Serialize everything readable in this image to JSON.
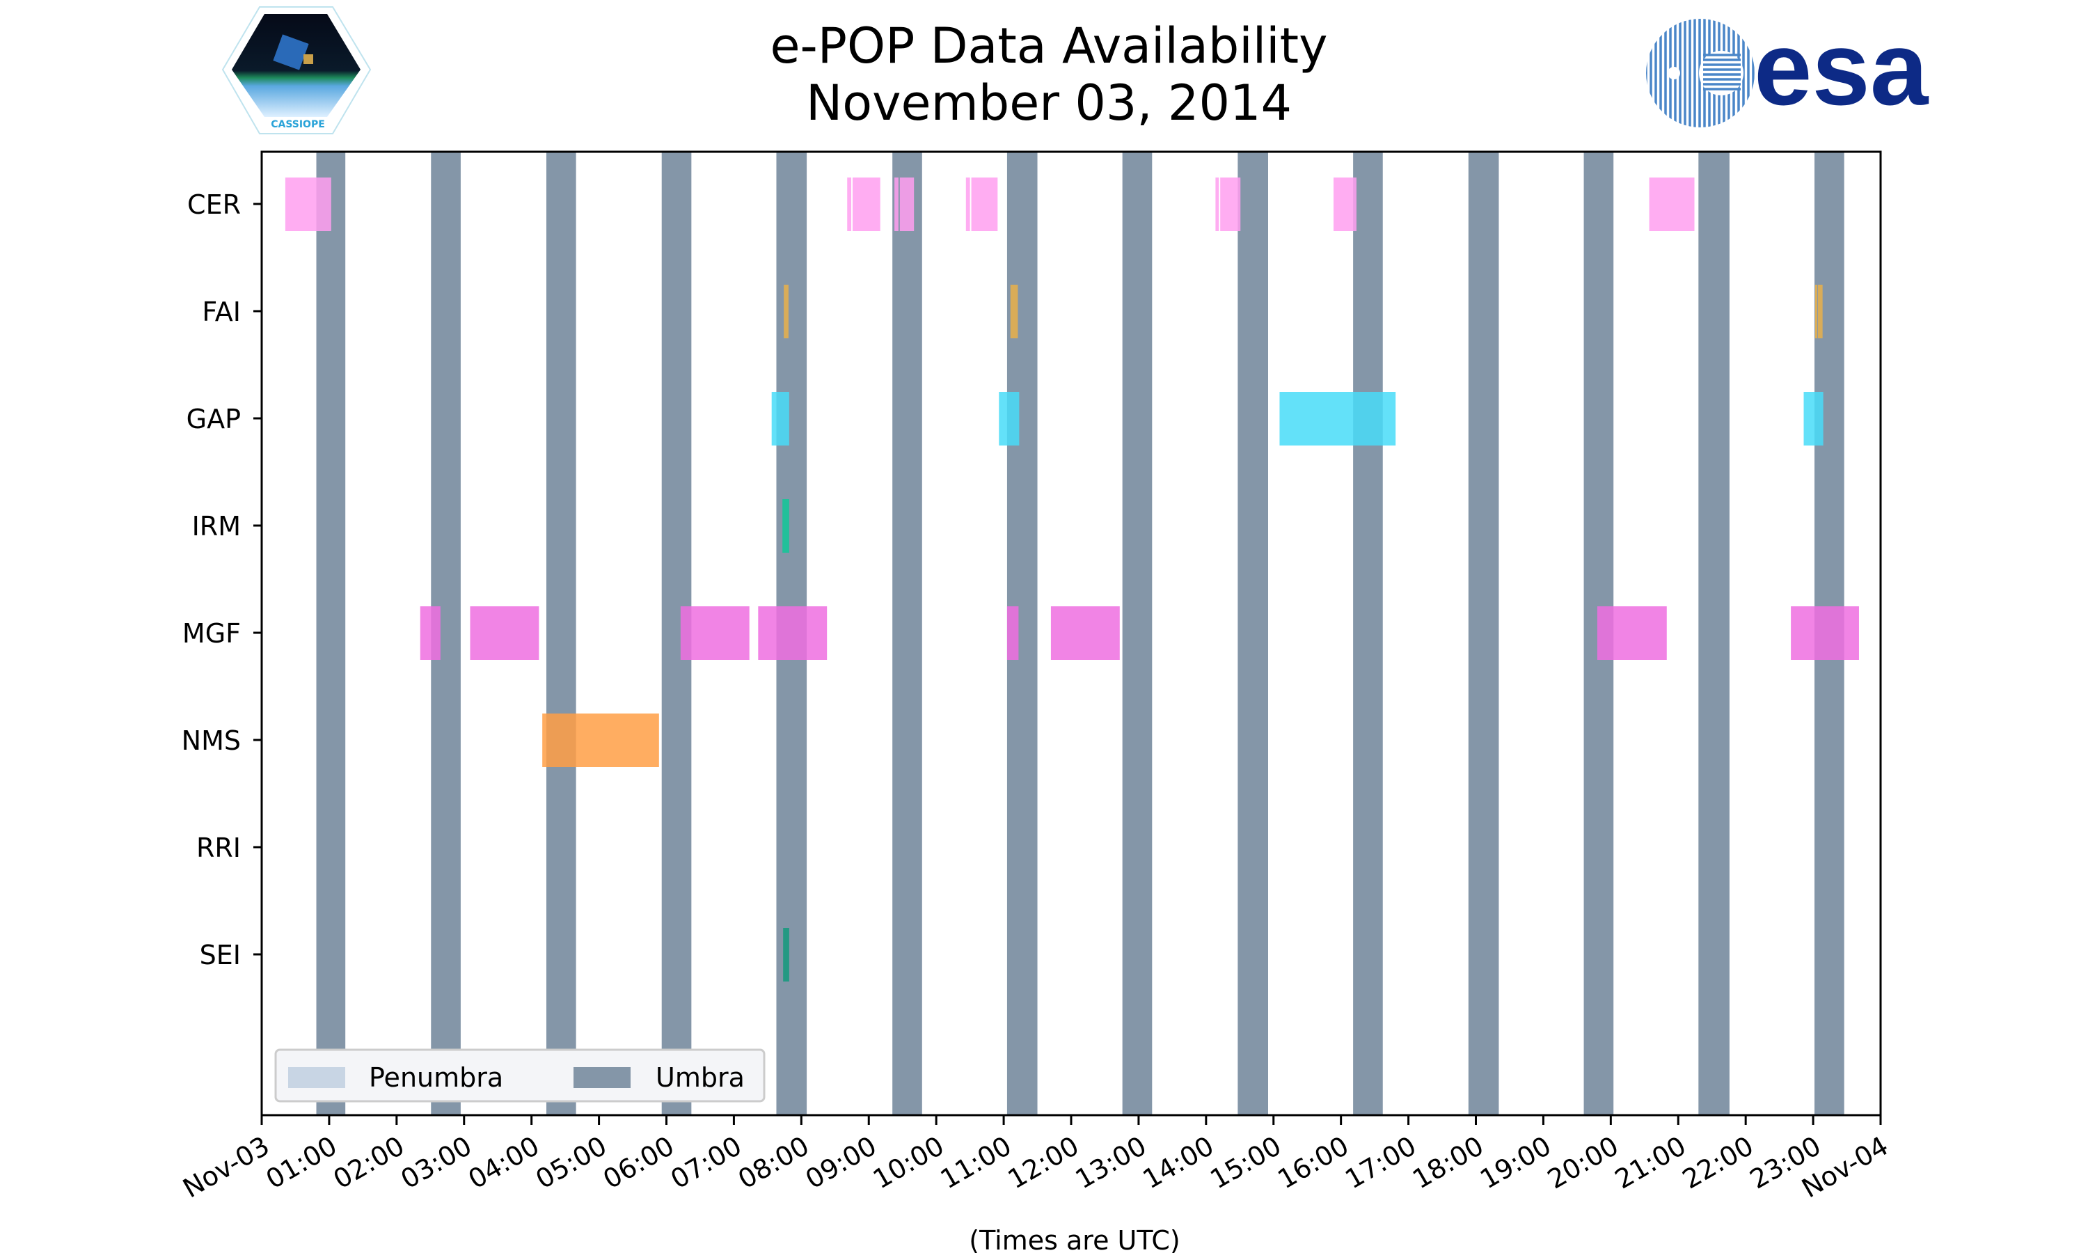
{
  "header": {
    "title_line1": "e-POP Data Availability",
    "title_line2": "November 03, 2014",
    "left_logo_text": "CASSIOPE",
    "right_logo_text": "esa"
  },
  "colors": {
    "umbra": "#8496a8",
    "penumbra": "#c8d5e4",
    "CER": "#ff9ff0",
    "FAI": "#e8b04a",
    "GAP": "#48dcf8",
    "IRM": "#10c898",
    "MGF": "#ef6ee0",
    "NMS": "#ff9f45",
    "RRI": "#888888",
    "SEI": "#139a7c",
    "esa_blue": "#0d2a86"
  },
  "chart_data": {
    "type": "timeline",
    "title": "e-POP Data Availability November 03, 2014",
    "xlabel": "(Times are UTC)",
    "xlim_hours": [
      0,
      24
    ],
    "x_tick_labels": [
      "Nov-03",
      "01:00",
      "02:00",
      "03:00",
      "04:00",
      "05:00",
      "06:00",
      "07:00",
      "08:00",
      "09:00",
      "10:00",
      "11:00",
      "12:00",
      "13:00",
      "14:00",
      "15:00",
      "16:00",
      "17:00",
      "18:00",
      "19:00",
      "20:00",
      "21:00",
      "22:00",
      "23:00",
      "Nov-04"
    ],
    "categories": [
      "CER",
      "FAI",
      "GAP",
      "IRM",
      "MGF",
      "NMS",
      "RRI",
      "SEI"
    ],
    "legend": {
      "placement": "lower-left",
      "entries": [
        "Penumbra",
        "Umbra"
      ]
    },
    "umbra_hours": [
      [
        0.81,
        1.24
      ],
      [
        2.51,
        2.95
      ],
      [
        4.22,
        4.66
      ],
      [
        5.93,
        6.37
      ],
      [
        7.63,
        8.08
      ],
      [
        9.35,
        9.79
      ],
      [
        11.05,
        11.5
      ],
      [
        12.76,
        13.2
      ],
      [
        14.47,
        14.92
      ],
      [
        16.18,
        16.62
      ],
      [
        17.89,
        18.34
      ],
      [
        19.6,
        20.04
      ],
      [
        21.3,
        21.76
      ],
      [
        23.02,
        23.46
      ]
    ],
    "penumbra_hours": [],
    "series": [
      {
        "name": "CER",
        "intervals": [
          [
            0.35,
            1.03
          ],
          [
            8.68,
            8.74
          ],
          [
            8.76,
            9.17
          ],
          [
            9.38,
            9.44
          ],
          [
            9.46,
            9.67
          ],
          [
            10.44,
            10.5
          ],
          [
            10.52,
            10.91
          ],
          [
            14.14,
            14.19
          ],
          [
            14.21,
            14.51
          ],
          [
            15.89,
            16.23
          ],
          [
            20.57,
            21.24
          ]
        ]
      },
      {
        "name": "FAI",
        "intervals": [
          [
            7.74,
            7.81
          ],
          [
            11.1,
            11.21
          ],
          [
            23.03,
            23.06
          ],
          [
            23.07,
            23.14
          ]
        ]
      },
      {
        "name": "GAP",
        "intervals": [
          [
            7.56,
            7.82
          ],
          [
            10.93,
            11.23
          ],
          [
            15.09,
            16.81
          ],
          [
            22.86,
            23.15
          ]
        ]
      },
      {
        "name": "IRM",
        "intervals": [
          [
            7.72,
            7.82
          ]
        ]
      },
      {
        "name": "MGF",
        "intervals": [
          [
            2.35,
            2.65
          ],
          [
            3.09,
            4.11
          ],
          [
            6.21,
            7.23
          ],
          [
            7.36,
            8.38
          ],
          [
            11.05,
            11.22
          ],
          [
            11.7,
            12.72
          ],
          [
            19.8,
            20.83
          ],
          [
            22.67,
            23.68
          ]
        ]
      },
      {
        "name": "NMS",
        "intervals": [
          [
            4.16,
            5.89
          ]
        ]
      },
      {
        "name": "RRI",
        "intervals": []
      },
      {
        "name": "SEI",
        "intervals": [
          [
            7.73,
            7.82
          ]
        ]
      }
    ]
  }
}
